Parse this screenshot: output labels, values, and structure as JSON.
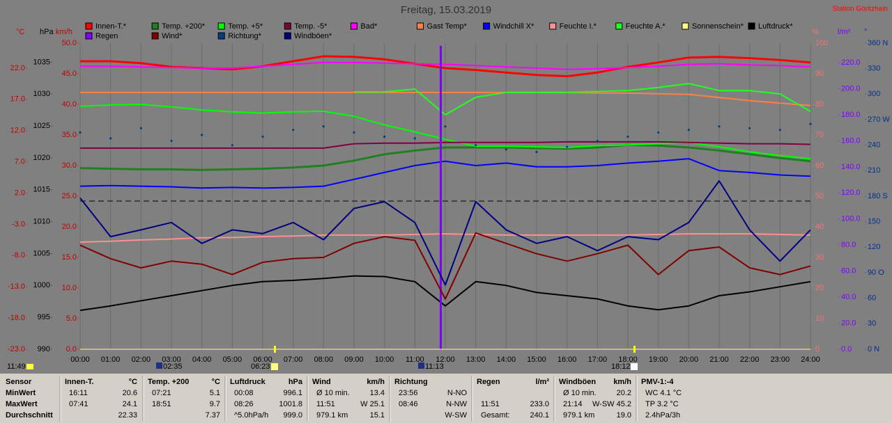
{
  "chart_data": {
    "type": "line",
    "title": "Freitag, 15.03.2019",
    "station": "Station Göritzhain",
    "xlim": [
      0,
      24
    ],
    "xticks": [
      {
        "value": 0,
        "label": "00:00"
      },
      {
        "value": 1,
        "label": "01:00"
      },
      {
        "value": 2,
        "label": "02:00"
      },
      {
        "value": 3,
        "label": "03:00"
      },
      {
        "value": 4,
        "label": "04:00"
      },
      {
        "value": 5,
        "label": "05:00"
      },
      {
        "value": 6,
        "label": "06:00"
      },
      {
        "value": 7,
        "label": "07:00"
      },
      {
        "value": 8,
        "label": "08:00"
      },
      {
        "value": 9,
        "label": "09:00"
      },
      {
        "value": 10,
        "label": "10:00"
      },
      {
        "value": 11,
        "label": "11:00"
      },
      {
        "value": 12,
        "label": "12:00"
      },
      {
        "value": 13,
        "label": "13:00"
      },
      {
        "value": 14,
        "label": "14:00"
      },
      {
        "value": 15,
        "label": "15:00"
      },
      {
        "value": 16,
        "label": "16:00"
      },
      {
        "value": 17,
        "label": "17:00"
      },
      {
        "value": 18,
        "label": "18:00"
      },
      {
        "value": 19,
        "label": "19:00"
      },
      {
        "value": 20,
        "label": "20:00"
      },
      {
        "value": 21,
        "label": "21:00"
      },
      {
        "value": 22,
        "label": "22:00"
      },
      {
        "value": 23,
        "label": "23:00"
      },
      {
        "value": 24,
        "label": "24:00"
      }
    ],
    "grid": true,
    "axes": {
      "temp": {
        "unit": "°C",
        "color": "#c00000",
        "side": "left",
        "lim": [
          -23,
          26
        ],
        "ticks": [
          {
            "value": -23,
            "label": "-23.0"
          },
          {
            "value": -18,
            "label": "-18.0"
          },
          {
            "value": -13,
            "label": "-13.0"
          },
          {
            "value": -8,
            "label": "-8.0"
          },
          {
            "value": -3,
            "label": "-3.0"
          },
          {
            "value": 2,
            "label": "2.0"
          },
          {
            "value": 7,
            "label": "7.0"
          },
          {
            "value": 12,
            "label": "12.0"
          },
          {
            "value": 17,
            "label": "17.0"
          },
          {
            "value": 22,
            "label": "22.0"
          }
        ]
      },
      "press": {
        "unit": "hPa",
        "color": "#000000",
        "side": "left",
        "lim": [
          990,
          1038
        ],
        "ticks": [
          990,
          995,
          1000,
          1005,
          1010,
          1015,
          1020,
          1025,
          1030,
          1035
        ]
      },
      "wind": {
        "unit": "km/h",
        "color": "#c00000",
        "side": "left",
        "lim": [
          0,
          50
        ],
        "ticks": [
          {
            "value": 0,
            "label": "0.0"
          },
          {
            "value": 5,
            "label": "5.0"
          },
          {
            "value": 10,
            "label": "10.0"
          },
          {
            "value": 15,
            "label": "15.0"
          },
          {
            "value": 20,
            "label": "20.0"
          },
          {
            "value": 25,
            "label": "25.0"
          },
          {
            "value": 30,
            "label": "30.0"
          },
          {
            "value": 35,
            "label": "35.0"
          },
          {
            "value": 40,
            "label": "40.0"
          },
          {
            "value": 45,
            "label": "45.0"
          },
          {
            "value": 50,
            "label": "50.0"
          }
        ]
      },
      "hum": {
        "unit": "%",
        "color": "#ff7070",
        "side": "right",
        "lim": [
          0,
          100
        ],
        "ticks": [
          0,
          10,
          20,
          30,
          40,
          50,
          60,
          70,
          80,
          90,
          100
        ]
      },
      "rain": {
        "unit": "l/m²",
        "color": "#8000ff",
        "side": "right",
        "lim": [
          0,
          235
        ],
        "ticks": [
          {
            "value": 0,
            "label": "0.0"
          },
          {
            "value": 20,
            "label": "20.0"
          },
          {
            "value": 40,
            "label": "40.0"
          },
          {
            "value": 60,
            "label": "60.0"
          },
          {
            "value": 80,
            "label": "80.0"
          },
          {
            "value": 100,
            "label": "100.0"
          },
          {
            "value": 120,
            "label": "120.0"
          },
          {
            "value": 140,
            "label": "140.0"
          },
          {
            "value": 160,
            "label": "160.0"
          },
          {
            "value": 180,
            "label": "180.0"
          },
          {
            "value": 200,
            "label": "200.0"
          },
          {
            "value": 220,
            "label": "220.0"
          }
        ]
      },
      "deg": {
        "unit": "°",
        "color": "#003090",
        "side": "right",
        "lim": [
          0,
          360
        ],
        "ticks": [
          {
            "value": 0,
            "label": "0 N"
          },
          30,
          60,
          {
            "value": 90,
            "label": "90 O"
          },
          120,
          150,
          {
            "value": 180,
            "label": "180 S"
          },
          210,
          240,
          {
            "value": 270,
            "label": "270 W"
          },
          300,
          330,
          {
            "value": 360,
            "label": "360 N"
          }
        ]
      }
    },
    "x": [
      0,
      1,
      2,
      3,
      4,
      5,
      6,
      7,
      8,
      9,
      10,
      11,
      12,
      13,
      14,
      15,
      16,
      17,
      18,
      19,
      20,
      21,
      22,
      23,
      24
    ],
    "series": [
      {
        "name": "Innen-T.*",
        "color": "#ff0000",
        "axis": "temp",
        "values": [
          23.1,
          23.1,
          22.8,
          22.2,
          22.0,
          21.8,
          22.3,
          23.1,
          23.9,
          23.8,
          23.4,
          22.7,
          22.0,
          21.7,
          21.3,
          20.9,
          20.7,
          21.3,
          22.2,
          22.9,
          23.7,
          23.8,
          23.6,
          23.3,
          22.9
        ]
      },
      {
        "name": "Temp. +200*",
        "color": "#208020",
        "axis": "temp",
        "values": [
          6.0,
          5.9,
          5.8,
          5.8,
          5.7,
          5.8,
          5.9,
          6.1,
          6.4,
          7.2,
          8.2,
          8.8,
          9.3,
          9.3,
          9.3,
          9.2,
          9.1,
          9.3,
          9.7,
          9.6,
          9.3,
          8.8,
          8.2,
          7.6,
          7.1
        ]
      },
      {
        "name": "Temp. +5*",
        "color": "#00ff00",
        "axis": "temp",
        "values": [
          15.9,
          16.1,
          16.2,
          15.8,
          15.3,
          15.0,
          14.8,
          15.0,
          15.1,
          14.3,
          12.9,
          11.8,
          10.6,
          9.5,
          9.5,
          9.4,
          9.3,
          9.6,
          9.7,
          9.9,
          10.1,
          9.4,
          8.6,
          8.0,
          7.5
        ]
      },
      {
        "name": "Temp. -5*",
        "color": "#800040",
        "axis": "temp",
        "values": [
          9.2,
          9.2,
          9.2,
          9.2,
          9.2,
          9.2,
          9.2,
          9.2,
          9.2,
          9.9,
          10.0,
          10.0,
          10.1,
          10.1,
          10.1,
          10.1,
          10.2,
          10.2,
          10.2,
          10.2,
          10.1,
          10.0,
          9.9,
          9.9,
          9.8
        ]
      },
      {
        "name": "Bad*",
        "color": "#ff00ff",
        "axis": "temp",
        "values": [
          22.3,
          22.3,
          22.2,
          22.1,
          22.0,
          22.0,
          22.3,
          22.6,
          22.9,
          22.9,
          22.8,
          22.7,
          22.6,
          22.4,
          22.2,
          22.0,
          21.8,
          21.9,
          22.1,
          22.3,
          22.6,
          22.7,
          22.5,
          22.4,
          22.2
        ]
      },
      {
        "name": "Gast Temp*",
        "color": "#ff8040",
        "axis": "temp",
        "values": [
          18.1,
          18.1,
          18.1,
          18.1,
          18.1,
          18.1,
          18.1,
          18.1,
          18.1,
          18.1,
          18.1,
          18.1,
          18.1,
          18.1,
          18.1,
          18.1,
          18.1,
          18.0,
          18.0,
          17.9,
          17.8,
          17.3,
          16.8,
          16.4,
          16.0
        ]
      },
      {
        "name": "Windchill X*",
        "color": "#0000ff",
        "axis": "temp",
        "values": [
          3.1,
          3.2,
          3.1,
          3.0,
          2.8,
          2.9,
          2.8,
          2.9,
          3.1,
          4.2,
          5.3,
          6.4,
          7.1,
          6.4,
          6.8,
          6.2,
          6.2,
          6.4,
          6.8,
          7.1,
          7.5,
          5.6,
          5.3,
          4.9,
          4.7
        ]
      },
      {
        "name": "Feuchte I.*",
        "color": "#ff9090",
        "axis": "hum",
        "values": [
          35.0,
          35.3,
          35.7,
          36.0,
          36.4,
          36.5,
          36.8,
          37.0,
          37.3,
          37.3,
          37.3,
          37.5,
          37.7,
          37.5,
          37.3,
          37.3,
          37.3,
          37.3,
          37.3,
          37.5,
          37.7,
          37.7,
          37.7,
          37.5,
          37.3
        ]
      },
      {
        "name": "Feuchte A.*",
        "color": "#20ff20",
        "axis": "hum",
        "values": [
          null,
          null,
          null,
          null,
          null,
          null,
          null,
          null,
          null,
          84.1,
          84.1,
          85.0,
          76.6,
          82.3,
          83.9,
          83.9,
          83.9,
          84.2,
          84.5,
          85.5,
          86.8,
          84.5,
          84.5,
          83.4,
          77.7
        ]
      },
      {
        "name": "Sonnenschein*",
        "color": "#ffff80",
        "axis": "hum"
      },
      {
        "name": "Luftdruck*",
        "color": "#000000",
        "axis": "press",
        "values": [
          996.1,
          996.8,
          997.6,
          998.4,
          999.2,
          1000.0,
          1000.6,
          1000.8,
          1001.1,
          1001.5,
          1001.4,
          1000.6,
          996.8,
          1000.6,
          1000.0,
          998.9,
          998.4,
          997.9,
          996.8,
          996.2,
          996.8,
          998.4,
          999.0,
          999.8,
          1000.6
        ]
      },
      {
        "name": "Regen",
        "color": "#8000ff",
        "axis": "rain",
        "kind": "bar",
        "x": [
          11.85
        ],
        "values": [
          233.0
        ]
      },
      {
        "name": "Wind*",
        "color": "#800000",
        "axis": "wind",
        "values": [
          17.0,
          14.8,
          13.3,
          14.4,
          13.9,
          12.2,
          14.2,
          14.8,
          15.0,
          17.3,
          18.4,
          17.8,
          8.2,
          19.0,
          17.3,
          15.6,
          14.4,
          15.6,
          17.0,
          12.2,
          16.1,
          16.7,
          13.3,
          12.2,
          13.6
        ]
      },
      {
        "name": "Richtung*",
        "color": "#004080",
        "axis": "deg",
        "kind": "scatter",
        "values": [
          255,
          248,
          260,
          245,
          252,
          240,
          250,
          258,
          262,
          255,
          250,
          248,
          262,
          240,
          235,
          232,
          238,
          245,
          250,
          255,
          258,
          262,
          260,
          258,
          265
        ]
      },
      {
        "name": "Windböen*",
        "color": "#000080",
        "axis": "wind",
        "values": [
          24.7,
          18.4,
          19.5,
          20.7,
          17.3,
          19.5,
          18.9,
          20.7,
          17.9,
          23.0,
          24.1,
          20.7,
          10.5,
          24.1,
          19.5,
          17.3,
          18.4,
          16.1,
          18.4,
          17.9,
          20.7,
          27.5,
          19.5,
          14.4,
          19.5
        ]
      }
    ],
    "sun_moon_times": [
      "11:49",
      "02:35",
      "06:23",
      "11:13",
      "18:12"
    ]
  },
  "table": {
    "corner": "Sensor",
    "row_labels": [
      "MinWert",
      "MaxWert",
      "Durchschnitt"
    ],
    "columns": [
      {
        "header": [
          "Innen-T.",
          "°C"
        ],
        "rows": [
          [
            "16:11",
            "20.6"
          ],
          [
            "07:41",
            "24.1"
          ],
          [
            "22.33"
          ]
        ]
      },
      {
        "header": [
          "Temp. +200",
          "°C"
        ],
        "rows": [
          [
            "07:21",
            "5.1"
          ],
          [
            "18:51",
            "9.7"
          ],
          [
            "7.37"
          ]
        ]
      },
      {
        "header": [
          "Luftdruck",
          "hPa"
        ],
        "rows": [
          [
            "00:08",
            "996.1"
          ],
          [
            "08:26",
            "1001.8"
          ],
          [
            "^5.0hPa/h",
            "999.0"
          ]
        ]
      },
      {
        "header": [
          "Wind",
          "km/h"
        ],
        "rows": [
          [
            "Ø 10 min.",
            "13.4"
          ],
          [
            "11:51",
            "W 25.1"
          ],
          [
            "979.1 km",
            "15.1"
          ]
        ]
      },
      {
        "header": [
          "Richtung"
        ],
        "rows": [
          [
            "23:56",
            "N-NO"
          ],
          [
            "08:46",
            "N-NW"
          ],
          [
            "W-SW"
          ]
        ]
      },
      {
        "header": [
          "Regen",
          "l/m²"
        ],
        "rows": [
          [],
          [
            "11:51",
            "233.0"
          ],
          [
            "Gesamt:",
            "240.1"
          ]
        ]
      },
      {
        "header": [
          "Windböen",
          "km/h"
        ],
        "rows": [
          [
            "Ø 10 min.",
            "20.2"
          ],
          [
            "21:14",
            "W-SW 45.2"
          ],
          [
            "979.1 km",
            "19.0"
          ]
        ]
      },
      {
        "header": [
          "PMV-1:-4"
        ],
        "align": "left",
        "rows": [
          [
            "WC 4.1 °C"
          ],
          [
            "TP 3.2 °C"
          ],
          [
            "2.4hPa/3h"
          ]
        ]
      }
    ]
  }
}
